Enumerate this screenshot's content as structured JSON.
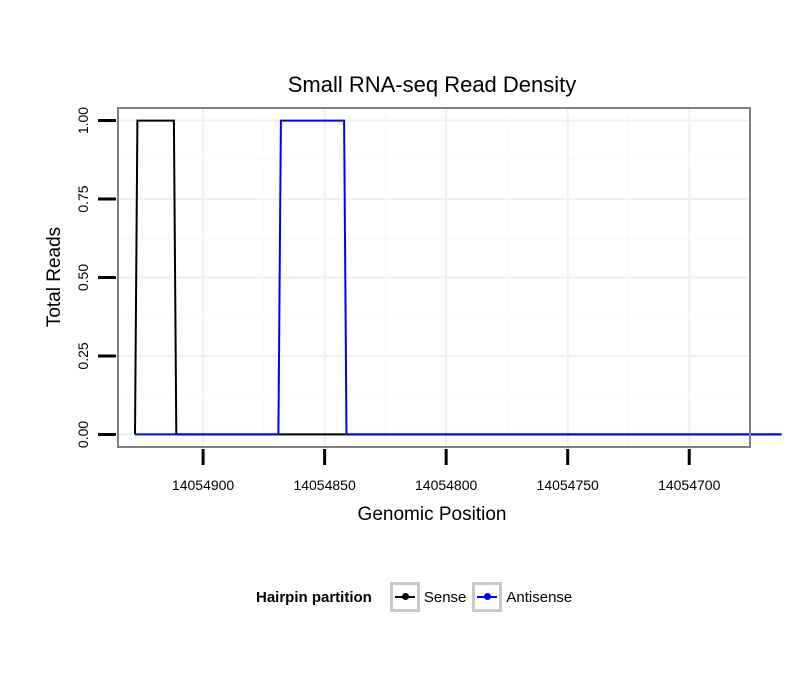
{
  "chart_data": {
    "type": "line",
    "title": "Small RNA-seq Read Density",
    "xlabel": "Genomic Position",
    "ylabel": "Total Reads",
    "x_reversed": true,
    "xlim": [
      14054935,
      14054675
    ],
    "ylim": [
      -0.04,
      1.04
    ],
    "x_ticks": [
      14054900,
      14054850,
      14054800,
      14054750,
      14054700
    ],
    "x_tick_labels": [
      "14054900",
      "14054850",
      "14054800",
      "14054750",
      "14054700"
    ],
    "y_ticks": [
      0.0,
      0.25,
      0.5,
      0.75,
      1.0
    ],
    "y_tick_labels": [
      "0.00",
      "0.25",
      "0.50",
      "0.75",
      "1.00"
    ],
    "grid": true,
    "legend_position": "bottom",
    "legend_title": "Hairpin partition",
    "series": [
      {
        "name": "Sense",
        "color": "#000000",
        "points": [
          [
            14054928,
            0
          ],
          [
            14054927,
            1
          ],
          [
            14054912,
            1
          ],
          [
            14054911,
            0
          ],
          [
            14054662,
            0
          ]
        ]
      },
      {
        "name": "Antisense",
        "color": "#0000ff",
        "points": [
          [
            14054928,
            0
          ],
          [
            14054911,
            0
          ],
          [
            14054869,
            0
          ],
          [
            14054868,
            1
          ],
          [
            14054842,
            1
          ],
          [
            14054841,
            0
          ],
          [
            14054662,
            0
          ]
        ]
      }
    ]
  }
}
